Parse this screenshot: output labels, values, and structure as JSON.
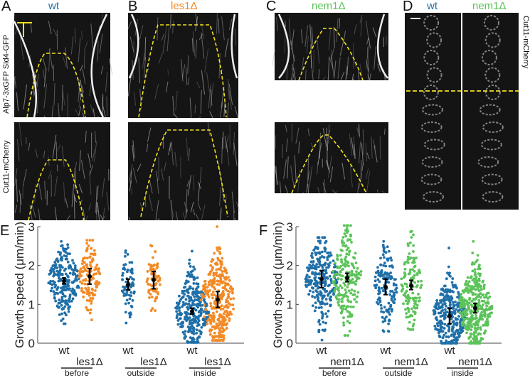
{
  "colors": {
    "wt": "#1f6fa8",
    "les1": "#f28a26",
    "nem1": "#5cc35a",
    "dash": "#f2e21a",
    "scalebar": "#f2e21a"
  },
  "panels": {
    "A": {
      "letter": "A",
      "title": "wt",
      "ylabel_top": "Alp7-3xGFP Sid4-GFP",
      "ylabel_bottom": "Cut11-mCherry"
    },
    "B": {
      "letter": "B",
      "title": "les1Δ"
    },
    "C": {
      "letter": "C",
      "title": "nem1Δ"
    },
    "D": {
      "letter": "D",
      "title_left": "wt",
      "title_right": "nem1Δ",
      "ylabel": "Cut11-mCherry"
    },
    "E": {
      "letter": "E"
    },
    "F": {
      "letter": "F"
    }
  },
  "chart_data": [
    {
      "type": "swarm",
      "panel": "E",
      "ylabel": "Growth speed (μm/min)",
      "ylim": [
        0,
        3
      ],
      "yticks": [
        "0",
        "1",
        "2",
        "3"
      ],
      "groups": [
        {
          "label": "before",
          "conditions": [
            {
              "name": "wt",
              "color": "wt",
              "mean": 1.6,
              "err": [
                1.53,
                1.68
              ],
              "min": 0.5,
              "max": 2.62,
              "n": 220
            },
            {
              "name": "les1Δ",
              "color": "les1",
              "mean": 1.72,
              "err": [
                1.52,
                1.92
              ],
              "min": 0.6,
              "max": 2.65,
              "n": 130
            }
          ]
        },
        {
          "label": "outside",
          "conditions": [
            {
              "name": "wt",
              "color": "wt",
              "mean": 1.5,
              "err": [
                1.37,
                1.65
              ],
              "min": 0.52,
              "max": 2.38,
              "n": 70
            },
            {
              "name": "les1Δ",
              "color": "les1",
              "mean": 1.63,
              "err": [
                1.4,
                1.85
              ],
              "min": 0.84,
              "max": 2.52,
              "n": 70
            }
          ]
        },
        {
          "label": "inside",
          "conditions": [
            {
              "name": "wt",
              "color": "wt",
              "mean": 0.82,
              "err": [
                0.75,
                0.9
              ],
              "min": 0.02,
              "max": 2.37,
              "n": 300
            },
            {
              "name": "les1Δ",
              "color": "les1",
              "mean": 1.12,
              "err": [
                0.92,
                1.33
              ],
              "min": 0.07,
              "max": 3.0,
              "n": 330
            }
          ]
        }
      ]
    },
    {
      "type": "swarm",
      "panel": "F",
      "ylabel": "Growth speed (μm/min)",
      "ylim": [
        0,
        3
      ],
      "yticks": [
        "0",
        "1",
        "2",
        "3"
      ],
      "groups": [
        {
          "label": "before",
          "conditions": [
            {
              "name": "wt",
              "color": "wt",
              "mean": 1.65,
              "err": [
                1.43,
                1.87
              ],
              "min": 0.08,
              "max": 2.72,
              "n": 260
            },
            {
              "name": "nem1Δ",
              "color": "nem1",
              "mean": 1.68,
              "err": [
                1.58,
                1.8
              ],
              "min": 0.2,
              "max": 3.03,
              "n": 200
            }
          ]
        },
        {
          "label": "outside",
          "conditions": [
            {
              "name": "wt",
              "color": "wt",
              "mean": 1.45,
              "err": [
                1.25,
                1.65
              ],
              "min": 0.3,
              "max": 2.62,
              "n": 150
            },
            {
              "name": "nem1Δ",
              "color": "nem1",
              "mean": 1.48,
              "err": [
                1.38,
                1.62
              ],
              "min": 0.35,
              "max": 2.88,
              "n": 130
            }
          ]
        },
        {
          "label": "inside",
          "conditions": [
            {
              "name": "wt",
              "color": "wt",
              "mean": 0.7,
              "err": [
                0.5,
                0.9
              ],
              "min": 0.0,
              "max": 2.45,
              "n": 330
            },
            {
              "name": "nem1Δ",
              "color": "nem1",
              "mean": 0.9,
              "err": [
                0.78,
                1.02
              ],
              "min": 0.0,
              "max": 2.62,
              "n": 360
            }
          ]
        }
      ]
    }
  ]
}
